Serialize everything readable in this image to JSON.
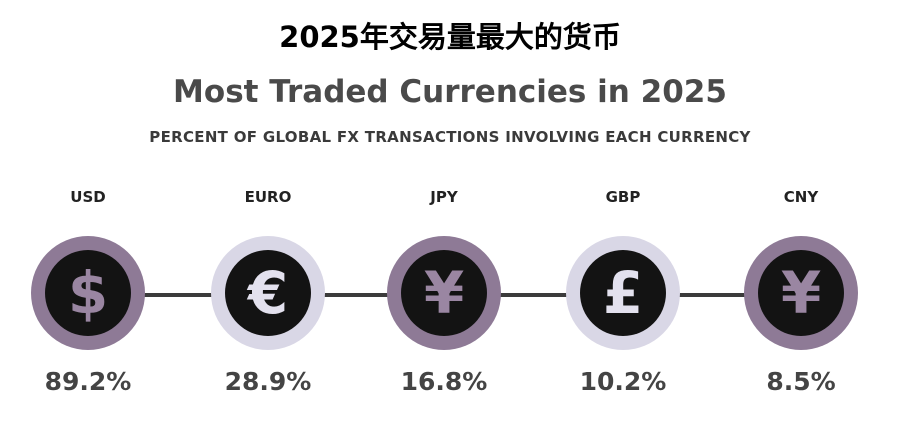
{
  "header": {
    "title_cn": "2025年交易量最大的货币",
    "title_en": "Most Traded Currencies in 2025",
    "subtitle": "PERCENT OF GLOBAL FX TRANSACTIONS INVOLVING EACH CURRENCY"
  },
  "chart_data": {
    "type": "table",
    "title": "Most Traded Currencies in 2025",
    "subtitle": "PERCENT OF GLOBAL FX TRANSACTIONS INVOLVING EACH CURRENCY",
    "categories": [
      "USD",
      "EURO",
      "JPY",
      "GBP",
      "CNY"
    ],
    "values": [
      89.2,
      28.9,
      16.8,
      10.2,
      8.5
    ],
    "value_labels": [
      "89.2%",
      "28.9%",
      "16.8%",
      "10.2%",
      "8.5%"
    ]
  },
  "items": [
    {
      "code": "USD",
      "symbol": "$",
      "icon": "dollar-sign-icon",
      "value": "89.2%",
      "ring_color": "#8e7a96",
      "symbol_color": "#9a86a2"
    },
    {
      "code": "EURO",
      "symbol": "€",
      "icon": "euro-sign-icon",
      "value": "28.9%",
      "ring_color": "#d9d7e6",
      "symbol_color": "#e3e1ee"
    },
    {
      "code": "JPY",
      "symbol": "¥",
      "icon": "yen-sign-icon",
      "value": "16.8%",
      "ring_color": "#8e7a96",
      "symbol_color": "#9a86a2"
    },
    {
      "code": "GBP",
      "symbol": "£",
      "icon": "pound-sign-icon",
      "value": "10.2%",
      "ring_color": "#d9d7e6",
      "symbol_color": "#e3e1ee"
    },
    {
      "code": "CNY",
      "symbol": "¥",
      "icon": "yuan-sign-icon",
      "value": "8.5%",
      "ring_color": "#8e7a96",
      "symbol_color": "#9a86a2"
    }
  ]
}
